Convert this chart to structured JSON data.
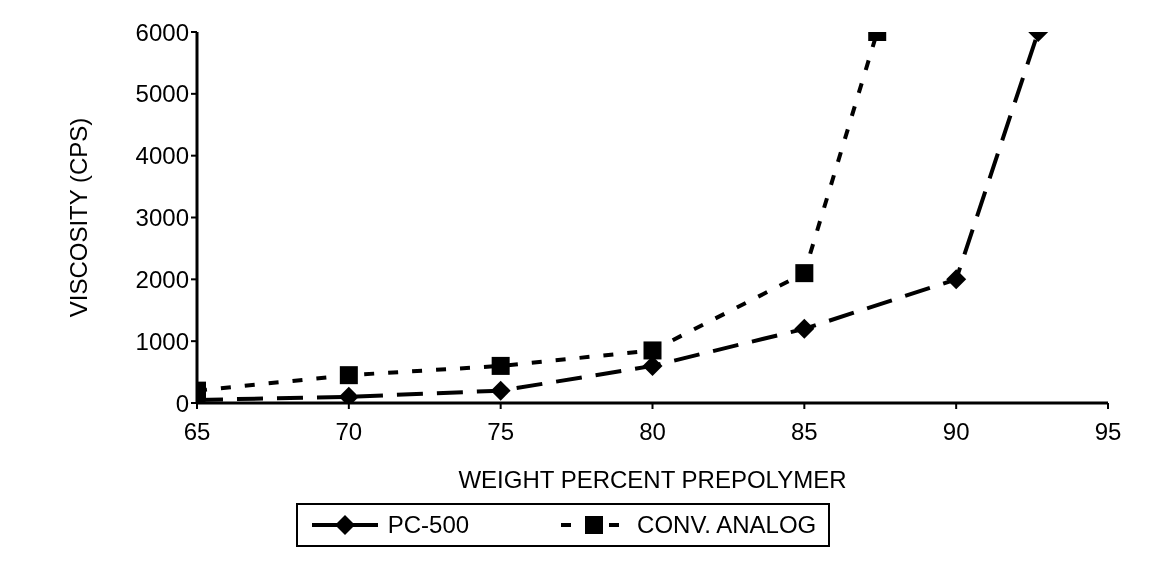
{
  "chart_data": {
    "type": "line",
    "xlabel": "WEIGHT PERCENT PREPOLYMER",
    "ylabel": "VISCOSITY (CPS)",
    "xlim": [
      65,
      95
    ],
    "xticks": [
      65,
      70,
      75,
      80,
      85,
      90,
      95
    ],
    "ylim": [
      0,
      6000
    ],
    "yticks": [
      0,
      1000,
      2000,
      3000,
      4000,
      5000,
      6000
    ],
    "grid": false,
    "legend": "bottom",
    "series": [
      {
        "name": "PC-500",
        "color": "#000000",
        "marker": "diamond",
        "line_style": "dashed",
        "x": [
          65,
          70,
          75,
          80,
          85,
          90,
          92.7
        ],
        "values": [
          50,
          100,
          200,
          600,
          1200,
          2000,
          6000
        ]
      },
      {
        "name": "CONV. ANALOG",
        "color": "#000000",
        "marker": "square",
        "line_style": "dotted",
        "x": [
          65,
          70,
          75,
          80,
          85,
          87.4
        ],
        "values": [
          200,
          450,
          600,
          850,
          2100,
          6000
        ]
      }
    ]
  }
}
